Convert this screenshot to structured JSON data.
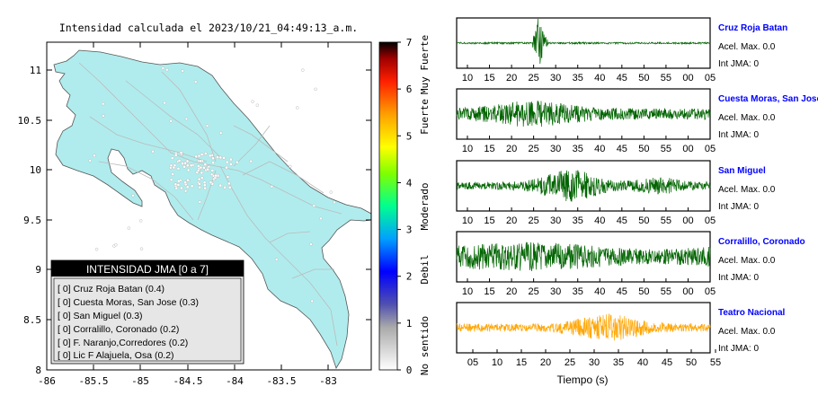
{
  "map": {
    "title": "Intensidad calculada el 2023/10/21_04:49:13_a.m.",
    "xticks": [
      "-86",
      "-85.5",
      "-85",
      "-84.5",
      "-84",
      "-83.5",
      "-83"
    ],
    "yticks": [
      "11",
      "10.5",
      "10",
      "9.5",
      "9",
      "8.5",
      "8"
    ],
    "land_color": "#b0eced",
    "legend": {
      "header": "INTENSIDAD JMA [0 a 7]",
      "items": [
        "[ 0]  Cruz Roja Batan (0.4)",
        "[ 0]  Cuesta Moras, San Jose (0.3)",
        "[ 0]  San Miguel (0.3)",
        "[ 0]  Corralillo, Coronado (0.2)",
        "[ 0]  F. Naranjo,Corredores (0.2)",
        "[ 0]  Lic F Alajuela, Osa (0.2)"
      ]
    }
  },
  "colorbar": {
    "ticks": [
      "0",
      "1",
      "2",
      "3",
      "4",
      "5",
      "6",
      "7"
    ],
    "labels": [
      "No sentido",
      "Debil",
      "Moderado",
      "Fuerte",
      "Muy Fuerte"
    ]
  },
  "waveforms": {
    "xlabel": "Tiempo (s)",
    "acel_label": "Acel. Max. 0.0",
    "int_label": "Int JMA: 0",
    "stations": [
      {
        "name": "Cruz Roja Batan",
        "color": "#006400",
        "ticks": [
          "10",
          "15",
          "20",
          "25",
          "30",
          "35",
          "40",
          "45",
          "50",
          "55",
          "00",
          "05"
        ]
      },
      {
        "name": "Cuesta Moras, San Jose",
        "color": "#006400",
        "ticks": [
          "10",
          "15",
          "20",
          "25",
          "30",
          "35",
          "40",
          "45",
          "50",
          "55",
          "00",
          "05"
        ]
      },
      {
        "name": "San Miguel",
        "color": "#006400",
        "ticks": [
          "10",
          "15",
          "20",
          "25",
          "30",
          "35",
          "40",
          "45",
          "50",
          "55",
          "00",
          "05"
        ]
      },
      {
        "name": "Corralillo, Coronado",
        "color": "#006400",
        "ticks": [
          "10",
          "15",
          "20",
          "25",
          "30",
          "35",
          "40",
          "45",
          "50",
          "55",
          "00",
          "05"
        ]
      },
      {
        "name": "Teatro Nacional",
        "color": "#ffa500",
        "ticks": [
          "05",
          "10",
          "15",
          "20",
          "25",
          "30",
          "35",
          "40",
          "45",
          "50",
          "55"
        ]
      }
    ]
  }
}
